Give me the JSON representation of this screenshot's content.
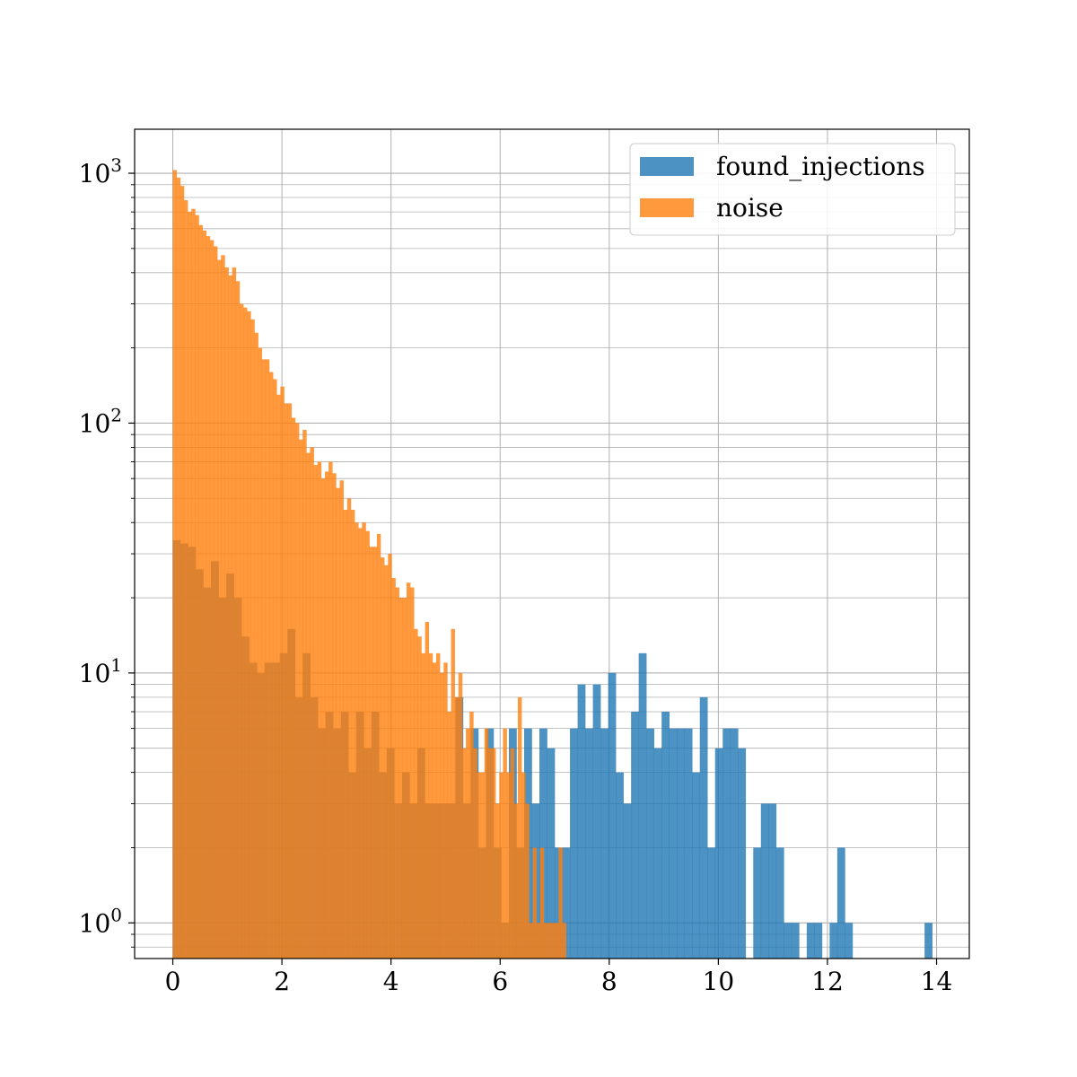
{
  "chart_data": {
    "type": "bar",
    "title": "",
    "xlabel": "",
    "ylabel": "",
    "y_scale": "log",
    "xlim": [
      -0.7,
      14.6
    ],
    "ylim": [
      0.72,
      1500
    ],
    "grid": true,
    "legend_position": "top-right",
    "x_ticks": [
      0,
      2,
      4,
      6,
      8,
      10,
      12,
      14
    ],
    "y_ticks": [
      {
        "value": 1,
        "base": "10",
        "exp": "0"
      },
      {
        "value": 10,
        "base": "10",
        "exp": "1"
      },
      {
        "value": 100,
        "base": "10",
        "exp": "2"
      },
      {
        "value": 1000,
        "base": "10",
        "exp": "3"
      }
    ],
    "series": [
      {
        "name": "found_injections",
        "color": "#1f77b4",
        "opacity": 0.8,
        "bins": [
          [
            0.0,
            0.14,
            34
          ],
          [
            0.14,
            0.28,
            33
          ],
          [
            0.28,
            0.42,
            32
          ],
          [
            0.42,
            0.56,
            26
          ],
          [
            0.56,
            0.7,
            22
          ],
          [
            0.7,
            0.84,
            28
          ],
          [
            0.84,
            0.98,
            20
          ],
          [
            0.98,
            1.12,
            25
          ],
          [
            1.12,
            1.26,
            20
          ],
          [
            1.26,
            1.4,
            14
          ],
          [
            1.4,
            1.54,
            11
          ],
          [
            1.54,
            1.68,
            10
          ],
          [
            1.68,
            1.82,
            11
          ],
          [
            1.82,
            1.96,
            11
          ],
          [
            1.96,
            2.1,
            12
          ],
          [
            2.1,
            2.24,
            15
          ],
          [
            2.24,
            2.38,
            8
          ],
          [
            2.38,
            2.52,
            12
          ],
          [
            2.52,
            2.66,
            8
          ],
          [
            2.66,
            2.8,
            6
          ],
          [
            2.8,
            2.94,
            7
          ],
          [
            2.94,
            3.08,
            6
          ],
          [
            3.08,
            3.22,
            7
          ],
          [
            3.22,
            3.36,
            4
          ],
          [
            3.36,
            3.5,
            7
          ],
          [
            3.5,
            3.64,
            5
          ],
          [
            3.64,
            3.78,
            7
          ],
          [
            3.78,
            3.92,
            4
          ],
          [
            3.92,
            4.06,
            5
          ],
          [
            4.06,
            4.2,
            3
          ],
          [
            4.2,
            4.34,
            4
          ],
          [
            4.34,
            4.48,
            3
          ],
          [
            4.48,
            4.62,
            5
          ],
          [
            4.62,
            4.76,
            3
          ],
          [
            4.76,
            4.9,
            3
          ],
          [
            4.9,
            5.04,
            3
          ],
          [
            5.04,
            5.18,
            3
          ],
          [
            5.18,
            5.32,
            8
          ],
          [
            5.32,
            5.46,
            3
          ],
          [
            5.46,
            5.6,
            6
          ],
          [
            5.6,
            5.74,
            2
          ],
          [
            5.74,
            5.88,
            6
          ],
          [
            5.88,
            6.02,
            2
          ],
          [
            6.02,
            6.16,
            1
          ],
          [
            6.16,
            6.3,
            6
          ],
          [
            6.3,
            6.44,
            2
          ],
          [
            6.44,
            6.58,
            6
          ],
          [
            6.58,
            6.72,
            3
          ],
          [
            6.72,
            6.86,
            6
          ],
          [
            6.86,
            7.0,
            5
          ],
          [
            7.0,
            7.14,
            2
          ],
          [
            7.14,
            7.28,
            2
          ],
          [
            7.28,
            7.42,
            6
          ],
          [
            7.42,
            7.56,
            9
          ],
          [
            7.56,
            7.7,
            6
          ],
          [
            7.7,
            7.84,
            9
          ],
          [
            7.84,
            7.98,
            6
          ],
          [
            7.98,
            8.12,
            10
          ],
          [
            8.12,
            8.26,
            4
          ],
          [
            8.26,
            8.4,
            3
          ],
          [
            8.4,
            8.54,
            7
          ],
          [
            8.54,
            8.68,
            12
          ],
          [
            8.68,
            8.82,
            6
          ],
          [
            8.82,
            8.96,
            5
          ],
          [
            8.96,
            9.1,
            7
          ],
          [
            9.1,
            9.24,
            6
          ],
          [
            9.24,
            9.38,
            6
          ],
          [
            9.38,
            9.52,
            6
          ],
          [
            9.52,
            9.66,
            4
          ],
          [
            9.66,
            9.8,
            8
          ],
          [
            9.8,
            9.94,
            2
          ],
          [
            9.94,
            10.08,
            5
          ],
          [
            10.08,
            10.22,
            6
          ],
          [
            10.22,
            10.36,
            6
          ],
          [
            10.36,
            10.5,
            5
          ],
          [
            10.64,
            10.78,
            2
          ],
          [
            10.78,
            10.92,
            3
          ],
          [
            10.92,
            11.06,
            3
          ],
          [
            11.06,
            11.2,
            2
          ],
          [
            11.2,
            11.34,
            1
          ],
          [
            11.34,
            11.48,
            1
          ],
          [
            11.62,
            11.76,
            1
          ],
          [
            11.76,
            11.9,
            1
          ],
          [
            12.04,
            12.18,
            1
          ],
          [
            12.18,
            12.32,
            2
          ],
          [
            12.32,
            12.46,
            1
          ],
          [
            13.78,
            13.92,
            1
          ]
        ]
      },
      {
        "name": "noise",
        "color": "#ff7f0e",
        "opacity": 0.8,
        "bins": [
          [
            0.0,
            0.068,
            1030
          ],
          [
            0.068,
            0.136,
            960
          ],
          [
            0.136,
            0.204,
            890
          ],
          [
            0.204,
            0.272,
            780
          ],
          [
            0.272,
            0.34,
            700
          ],
          [
            0.34,
            0.408,
            720
          ],
          [
            0.408,
            0.476,
            680
          ],
          [
            0.476,
            0.544,
            620
          ],
          [
            0.544,
            0.612,
            590
          ],
          [
            0.612,
            0.68,
            560
          ],
          [
            0.68,
            0.748,
            540
          ],
          [
            0.748,
            0.816,
            510
          ],
          [
            0.816,
            0.884,
            450
          ],
          [
            0.884,
            0.952,
            470
          ],
          [
            0.952,
            1.02,
            420
          ],
          [
            1.02,
            1.088,
            390
          ],
          [
            1.088,
            1.156,
            420
          ],
          [
            1.156,
            1.224,
            370
          ],
          [
            1.224,
            1.292,
            300
          ],
          [
            1.292,
            1.36,
            290
          ],
          [
            1.36,
            1.428,
            280
          ],
          [
            1.428,
            1.496,
            260
          ],
          [
            1.496,
            1.564,
            230
          ],
          [
            1.564,
            1.632,
            200
          ],
          [
            1.632,
            1.7,
            180
          ],
          [
            1.7,
            1.768,
            180
          ],
          [
            1.768,
            1.836,
            160
          ],
          [
            1.836,
            1.904,
            150
          ],
          [
            1.904,
            1.972,
            130
          ],
          [
            1.972,
            2.04,
            140
          ],
          [
            2.04,
            2.108,
            120
          ],
          [
            2.108,
            2.176,
            120
          ],
          [
            2.176,
            2.244,
            105
          ],
          [
            2.244,
            2.312,
            100
          ],
          [
            2.312,
            2.38,
            86
          ],
          [
            2.38,
            2.448,
            94
          ],
          [
            2.448,
            2.516,
            76
          ],
          [
            2.516,
            2.584,
            80
          ],
          [
            2.584,
            2.652,
            68
          ],
          [
            2.652,
            2.72,
            70
          ],
          [
            2.72,
            2.788,
            60
          ],
          [
            2.788,
            2.856,
            64
          ],
          [
            2.856,
            2.924,
            70
          ],
          [
            2.924,
            2.992,
            63
          ],
          [
            2.992,
            3.06,
            55
          ],
          [
            3.06,
            3.128,
            59
          ],
          [
            3.128,
            3.196,
            45
          ],
          [
            3.196,
            3.264,
            50
          ],
          [
            3.264,
            3.332,
            45
          ],
          [
            3.332,
            3.4,
            40
          ],
          [
            3.4,
            3.468,
            38
          ],
          [
            3.468,
            3.536,
            40
          ],
          [
            3.536,
            3.604,
            37
          ],
          [
            3.604,
            3.672,
            32
          ],
          [
            3.672,
            3.74,
            32
          ],
          [
            3.74,
            3.808,
            36
          ],
          [
            3.808,
            3.876,
            29
          ],
          [
            3.876,
            3.944,
            27
          ],
          [
            3.944,
            4.012,
            30
          ],
          [
            4.012,
            4.08,
            24
          ],
          [
            4.08,
            4.148,
            22
          ],
          [
            4.148,
            4.216,
            20
          ],
          [
            4.216,
            4.284,
            20
          ],
          [
            4.284,
            4.352,
            23
          ],
          [
            4.352,
            4.42,
            22
          ],
          [
            4.42,
            4.488,
            15
          ],
          [
            4.488,
            4.556,
            14
          ],
          [
            4.556,
            4.624,
            12
          ],
          [
            4.624,
            4.692,
            16
          ],
          [
            4.692,
            4.76,
            12
          ],
          [
            4.76,
            4.828,
            11
          ],
          [
            4.828,
            4.896,
            12
          ],
          [
            4.896,
            4.964,
            10
          ],
          [
            4.964,
            5.032,
            11
          ],
          [
            5.032,
            5.1,
            7
          ],
          [
            5.1,
            5.168,
            15
          ],
          [
            5.168,
            5.236,
            8
          ],
          [
            5.236,
            5.304,
            10
          ],
          [
            5.304,
            5.372,
            5
          ],
          [
            5.372,
            5.44,
            6
          ],
          [
            5.44,
            5.508,
            7
          ],
          [
            5.508,
            5.576,
            5
          ],
          [
            5.576,
            5.644,
            4
          ],
          [
            5.644,
            5.712,
            4
          ],
          [
            5.712,
            5.78,
            6
          ],
          [
            5.78,
            5.848,
            5
          ],
          [
            5.848,
            5.916,
            5
          ],
          [
            5.916,
            5.984,
            3
          ],
          [
            5.984,
            6.052,
            4
          ],
          [
            6.052,
            6.12,
            6
          ],
          [
            6.12,
            6.188,
            4
          ],
          [
            6.188,
            6.256,
            5
          ],
          [
            6.256,
            6.324,
            3
          ],
          [
            6.324,
            6.392,
            8
          ],
          [
            6.392,
            6.46,
            4
          ],
          [
            6.46,
            6.528,
            3
          ],
          [
            6.528,
            6.596,
            1
          ],
          [
            6.596,
            6.664,
            2
          ],
          [
            6.664,
            6.732,
            1
          ],
          [
            6.732,
            6.8,
            2
          ],
          [
            6.8,
            6.868,
            1
          ],
          [
            6.868,
            6.936,
            1
          ],
          [
            6.936,
            7.004,
            1
          ],
          [
            7.004,
            7.072,
            1
          ],
          [
            7.072,
            7.14,
            2
          ],
          [
            7.14,
            7.208,
            1
          ]
        ]
      }
    ]
  }
}
